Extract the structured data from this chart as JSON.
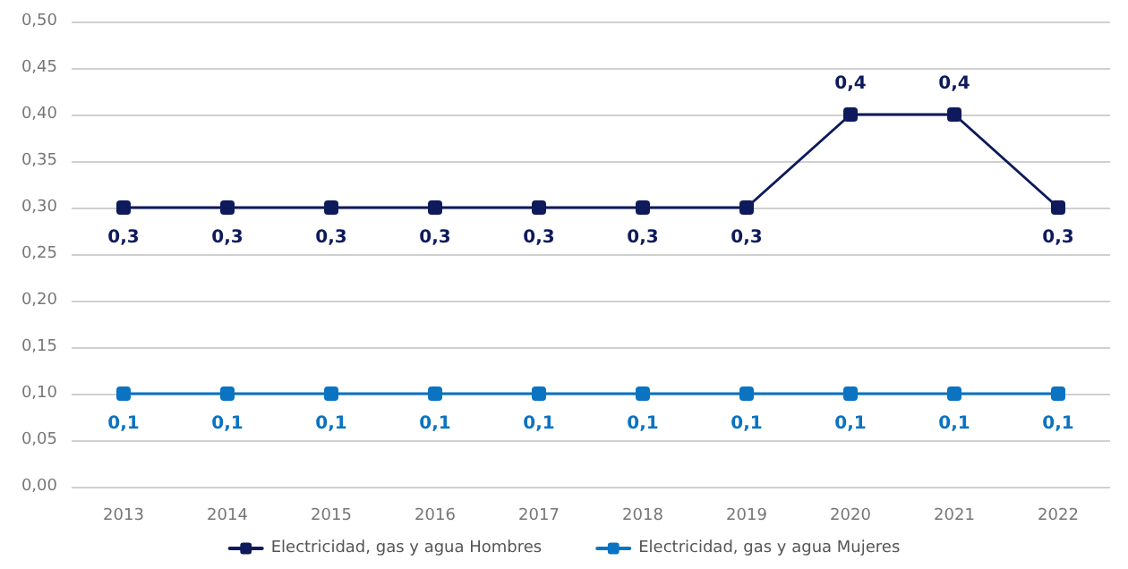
{
  "chart_data": {
    "type": "line",
    "categories": [
      "2013",
      "2014",
      "2015",
      "2016",
      "2017",
      "2018",
      "2019",
      "2020",
      "2021",
      "2022"
    ],
    "series": [
      {
        "name": "Electricidad, gas y agua Hombres",
        "color": "#0e1a5c",
        "values": [
          0.3,
          0.3,
          0.3,
          0.3,
          0.3,
          0.3,
          0.3,
          0.4,
          0.4,
          0.3
        ],
        "value_labels": [
          "0,3",
          "0,3",
          "0,3",
          "0,3",
          "0,3",
          "0,3",
          "0,3",
          "0,4",
          "0,4",
          "0,3"
        ]
      },
      {
        "name": "Electricidad, gas y agua Mujeres",
        "color": "#0a73c2",
        "values": [
          0.1,
          0.1,
          0.1,
          0.1,
          0.1,
          0.1,
          0.1,
          0.1,
          0.1,
          0.1
        ],
        "value_labels": [
          "0,1",
          "0,1",
          "0,1",
          "0,1",
          "0,1",
          "0,1",
          "0,1",
          "0,1",
          "0,1",
          "0,1"
        ]
      }
    ],
    "ylim": [
      0,
      0.5
    ],
    "yticks": [
      {
        "value": 0,
        "label": "0,00"
      },
      {
        "value": 0.05,
        "label": "0,05"
      },
      {
        "value": 0.1,
        "label": "0,10"
      },
      {
        "value": 0.15,
        "label": "0,15"
      },
      {
        "value": 0.2,
        "label": "0,20"
      },
      {
        "value": 0.25,
        "label": "0,25"
      },
      {
        "value": 0.3,
        "label": "0,30"
      },
      {
        "value": 0.35,
        "label": "0,35"
      },
      {
        "value": 0.4,
        "label": "0,40"
      },
      {
        "value": 0.45,
        "label": "0,45"
      },
      {
        "value": 0.5,
        "label": "0,50"
      }
    ],
    "grid": "y",
    "legend": "bottom",
    "marker": "square",
    "line_style": "solid"
  }
}
